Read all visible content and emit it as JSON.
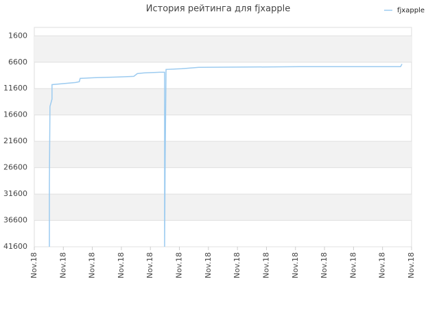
{
  "chart_data": {
    "type": "line",
    "title": "История рейтинга для fjxapple",
    "x": [
      0.52,
      0.52,
      0.54,
      0.57,
      0.61,
      0.61,
      1.42,
      1.55,
      1.58,
      2.06,
      2.95,
      3.43,
      3.55,
      3.78,
      4.33,
      4.49,
      4.49,
      4.51,
      4.54,
      5.08,
      5.67,
      9.15,
      12.62,
      12.67
    ],
    "series": [
      {
        "name": "fjxapple",
        "color": "#9ccbf0",
        "values": [
          41600,
          29700,
          15000,
          14400,
          13600,
          10850,
          10450,
          10300,
          9670,
          9540,
          9400,
          9280,
          8760,
          8630,
          8500,
          8500,
          41600,
          24700,
          7970,
          7840,
          7580,
          7450,
          7450,
          6940
        ]
      }
    ],
    "xlim": [
      0,
      13
    ],
    "xticks": [
      {
        "value": 0,
        "label": "Nov.18"
      },
      {
        "value": 1,
        "label": "Nov.18"
      },
      {
        "value": 2,
        "label": "Nov.18"
      },
      {
        "value": 3,
        "label": "Nov.18"
      },
      {
        "value": 4,
        "label": "Nov.18"
      },
      {
        "value": 5,
        "label": "Nov.18"
      },
      {
        "value": 6,
        "label": "Nov.18"
      },
      {
        "value": 7,
        "label": "Nov.18"
      },
      {
        "value": 8,
        "label": "Nov.18"
      },
      {
        "value": 9,
        "label": "Nov.18"
      },
      {
        "value": 10,
        "label": "Nov.18"
      },
      {
        "value": 11,
        "label": "Nov.18"
      },
      {
        "value": 12,
        "label": "Nov.18"
      },
      {
        "value": 13,
        "label": "Nov.18"
      }
    ],
    "ylim": [
      41600,
      0
    ],
    "yticks": [
      1600,
      6600,
      11600,
      16600,
      21600,
      26600,
      31600,
      36600,
      41600
    ],
    "grid": true,
    "legend": "top-right"
  }
}
